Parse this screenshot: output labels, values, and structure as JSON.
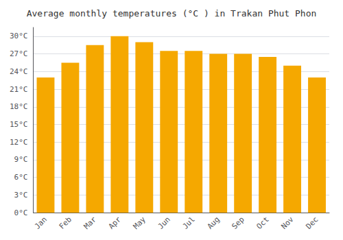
{
  "chart_data": {
    "type": "bar",
    "title": "Average monthly temperatures (°C ) in Trakan Phut Phon",
    "categories": [
      "Jan",
      "Feb",
      "Mar",
      "Apr",
      "May",
      "Jun",
      "Jul",
      "Aug",
      "Sep",
      "Oct",
      "Nov",
      "Dec"
    ],
    "values": [
      23.0,
      25.5,
      28.5,
      30.0,
      29.0,
      27.5,
      27.5,
      27.0,
      27.0,
      26.5,
      25.0,
      23.0
    ],
    "color": "#F5A800",
    "ylim": [
      0,
      31.5
    ],
    "yticks": [
      {
        "value": 0,
        "label": "0°C"
      },
      {
        "value": 3,
        "label": "3°C"
      },
      {
        "value": 6,
        "label": "6°C"
      },
      {
        "value": 9,
        "label": "9°C"
      },
      {
        "value": 12,
        "label": "12°C"
      },
      {
        "value": 15,
        "label": "15°C"
      },
      {
        "value": 18,
        "label": "18°C"
      },
      {
        "value": 21,
        "label": "21°C"
      },
      {
        "value": 24,
        "label": "24°C"
      },
      {
        "value": 27,
        "label": "27°C"
      },
      {
        "value": 30,
        "label": "30°C"
      }
    ],
    "grid": true
  }
}
